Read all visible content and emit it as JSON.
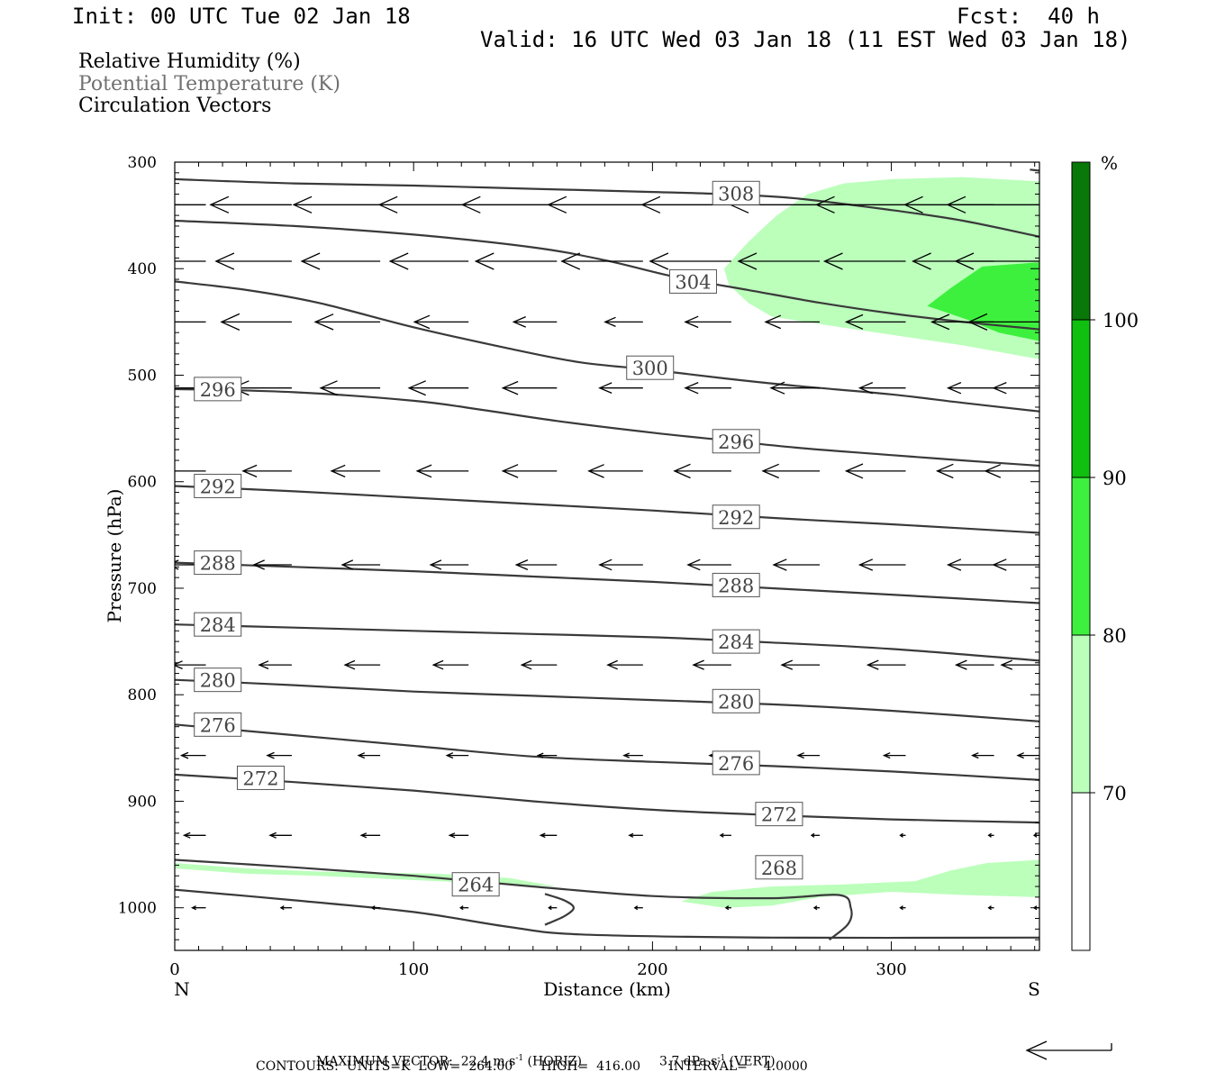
{
  "header": {
    "init": "Init: 00 UTC Tue 02 Jan 18",
    "fcst": "Fcst:  40 h",
    "valid": "Valid: 16 UTC Wed 03 Jan 18 (11 EST Wed 03 Jan 18)"
  },
  "legend": {
    "rh": "Relative Humidity (%)",
    "theta": "Potential Temperature (K)",
    "vectors": "Circulation Vectors"
  },
  "colors": {
    "rh70": "#bbffbb",
    "rh80": "#3ef03e",
    "rh90": "#0fc00f",
    "rh100": "#087808",
    "contour": "#3a3a3a",
    "label_text": "#444444",
    "legend_gray": "#707070"
  },
  "chart_data": {
    "type": "cross-section",
    "xlabel": "Distance (km)",
    "ylabel": "Pressure (hPa)",
    "xlim": [
      0,
      362
    ],
    "ylim": [
      1040,
      300
    ],
    "x_ticks": [
      "0",
      "100",
      "200",
      "300"
    ],
    "y_ticks": [
      "300",
      "400",
      "500",
      "600",
      "700",
      "800",
      "900",
      "1000"
    ],
    "x_end_labels": {
      "left": "N",
      "right": "S"
    },
    "colorbar": {
      "unit": "%",
      "levels": [
        "70",
        "80",
        "90",
        "100"
      ],
      "colors": [
        "#ffffff",
        "#bbffbb",
        "#3ef03e",
        "#0fc00f",
        "#087808"
      ]
    },
    "rh_fills": [
      {
        "level": 70,
        "points": [
          [
            230,
            400
          ],
          [
            240,
            375
          ],
          [
            252,
            350
          ],
          [
            265,
            330
          ],
          [
            280,
            320
          ],
          [
            300,
            316
          ],
          [
            330,
            314
          ],
          [
            362,
            318
          ],
          [
            362,
            485
          ],
          [
            330,
            472
          ],
          [
            300,
            462
          ],
          [
            270,
            452
          ],
          [
            250,
            445
          ],
          [
            240,
            432
          ],
          [
            232,
            415
          ]
        ]
      },
      {
        "level": 80,
        "points": [
          [
            315,
            435
          ],
          [
            325,
            418
          ],
          [
            338,
            398
          ],
          [
            362,
            394
          ],
          [
            362,
            468
          ],
          [
            345,
            460
          ],
          [
            332,
            448
          ]
        ]
      },
      {
        "level": 70,
        "points": [
          [
            0,
            958
          ],
          [
            30,
            963
          ],
          [
            60,
            966
          ],
          [
            110,
            968
          ],
          [
            140,
            972
          ],
          [
            160,
            980
          ],
          [
            140,
            978
          ],
          [
            110,
            975
          ],
          [
            60,
            970
          ],
          [
            30,
            968
          ],
          [
            0,
            963
          ]
        ]
      },
      {
        "level": 70,
        "points": [
          [
            212,
            994
          ],
          [
            225,
            985
          ],
          [
            250,
            980
          ],
          [
            280,
            978
          ],
          [
            310,
            975
          ],
          [
            325,
            965
          ],
          [
            340,
            958
          ],
          [
            362,
            955
          ],
          [
            362,
            990
          ],
          [
            330,
            988
          ],
          [
            300,
            985
          ],
          [
            270,
            990
          ],
          [
            250,
            998
          ],
          [
            230,
            1000
          ]
        ]
      }
    ],
    "theta_contours": [
      {
        "value": 308,
        "points": [
          [
            0,
            316
          ],
          [
            50,
            320
          ],
          [
            100,
            322
          ],
          [
            150,
            325
          ],
          [
            200,
            328
          ],
          [
            230,
            330
          ],
          [
            260,
            334
          ],
          [
            300,
            345
          ],
          [
            330,
            355
          ],
          [
            362,
            370
          ]
        ],
        "labels": [
          [
            235,
            329
          ]
        ]
      },
      {
        "value": 304,
        "points": [
          [
            0,
            355
          ],
          [
            50,
            360
          ],
          [
            100,
            368
          ],
          [
            150,
            380
          ],
          [
            180,
            392
          ],
          [
            210,
            408
          ],
          [
            240,
            420
          ],
          [
            270,
            432
          ],
          [
            300,
            442
          ],
          [
            330,
            450
          ],
          [
            362,
            457
          ]
        ],
        "labels": [
          [
            217,
            412
          ]
        ]
      },
      {
        "value": 300,
        "points": [
          [
            0,
            412
          ],
          [
            30,
            420
          ],
          [
            60,
            432
          ],
          [
            100,
            455
          ],
          [
            140,
            475
          ],
          [
            170,
            488
          ],
          [
            200,
            495
          ],
          [
            230,
            503
          ],
          [
            260,
            510
          ],
          [
            300,
            518
          ],
          [
            330,
            526
          ],
          [
            362,
            534
          ]
        ],
        "labels": [
          [
            199,
            493
          ]
        ]
      },
      {
        "value": 296,
        "points": [
          [
            0,
            513
          ],
          [
            50,
            516
          ],
          [
            100,
            524
          ],
          [
            130,
            533
          ],
          [
            160,
            543
          ],
          [
            200,
            554
          ],
          [
            230,
            561
          ],
          [
            260,
            568
          ],
          [
            300,
            575
          ],
          [
            330,
            580
          ],
          [
            362,
            585
          ]
        ],
        "labels": [
          [
            18,
            513
          ],
          [
            235,
            562
          ]
        ]
      },
      {
        "value": 292,
        "points": [
          [
            0,
            604
          ],
          [
            50,
            609
          ],
          [
            100,
            615
          ],
          [
            150,
            621
          ],
          [
            200,
            627
          ],
          [
            250,
            634
          ],
          [
            300,
            640
          ],
          [
            362,
            648
          ]
        ],
        "labels": [
          [
            18,
            604
          ],
          [
            235,
            633
          ]
        ]
      },
      {
        "value": 288,
        "points": [
          [
            0,
            676
          ],
          [
            50,
            680
          ],
          [
            100,
            684
          ],
          [
            150,
            689
          ],
          [
            200,
            694
          ],
          [
            250,
            700
          ],
          [
            300,
            706
          ],
          [
            362,
            714
          ]
        ],
        "labels": [
          [
            18,
            676
          ],
          [
            235,
            697
          ]
        ]
      },
      {
        "value": 284,
        "points": [
          [
            0,
            734
          ],
          [
            50,
            737
          ],
          [
            100,
            740
          ],
          [
            150,
            743
          ],
          [
            200,
            746
          ],
          [
            250,
            751
          ],
          [
            300,
            757
          ],
          [
            362,
            768
          ]
        ],
        "labels": [
          [
            18,
            734
          ],
          [
            235,
            750
          ]
        ]
      },
      {
        "value": 280,
        "points": [
          [
            0,
            786
          ],
          [
            50,
            791
          ],
          [
            100,
            797
          ],
          [
            150,
            801
          ],
          [
            200,
            805
          ],
          [
            250,
            809
          ],
          [
            300,
            815
          ],
          [
            362,
            825
          ]
        ],
        "labels": [
          [
            18,
            786
          ],
          [
            235,
            806
          ]
        ]
      },
      {
        "value": 276,
        "points": [
          [
            0,
            828
          ],
          [
            50,
            838
          ],
          [
            100,
            848
          ],
          [
            150,
            858
          ],
          [
            200,
            863
          ],
          [
            250,
            867
          ],
          [
            300,
            872
          ],
          [
            362,
            880
          ]
        ],
        "labels": [
          [
            18,
            828
          ],
          [
            235,
            864
          ]
        ]
      },
      {
        "value": 272,
        "points": [
          [
            0,
            875
          ],
          [
            50,
            882
          ],
          [
            100,
            890
          ],
          [
            150,
            900
          ],
          [
            200,
            908
          ],
          [
            250,
            913
          ],
          [
            300,
            917
          ],
          [
            362,
            920
          ]
        ],
        "labels": [
          [
            36,
            878
          ],
          [
            253,
            912
          ]
        ]
      },
      {
        "value": 268,
        "points": [
          [
            0,
            955
          ],
          [
            50,
            962
          ],
          [
            100,
            970
          ],
          [
            150,
            980
          ],
          [
            200,
            989
          ],
          [
            250,
            991
          ],
          [
            278,
            988
          ],
          [
            283,
            1000
          ],
          [
            282,
            1015
          ],
          [
            274,
            1030
          ]
        ],
        "labels": [
          [
            253,
            962
          ]
        ]
      },
      {
        "value": 264,
        "points": [
          [
            0,
            983
          ],
          [
            50,
            993
          ],
          [
            100,
            1004
          ],
          [
            140,
            1018
          ],
          [
            170,
            1025
          ],
          [
            250,
            1028
          ],
          [
            362,
            1028
          ]
        ],
        "labels": [
          [
            126,
            978
          ]
        ]
      }
    ],
    "theta_tail": [
      [
        358,
        307
      ],
      [
        362,
        308
      ]
    ],
    "theta_264_fold": [
      [
        155,
        987
      ],
      [
        163,
        993
      ],
      [
        167,
        1000
      ],
      [
        163,
        1008
      ],
      [
        155,
        1016
      ]
    ],
    "vectors": [
      {
        "p": 340,
        "u": [
          -30,
          -30,
          -32,
          -33,
          -35,
          -35,
          -33,
          -33,
          -33,
          -33,
          -34
        ]
      },
      {
        "p": 393,
        "u": [
          -28,
          -28,
          -29,
          -29,
          -30,
          -30,
          -30,
          -30,
          -30,
          -30,
          -31
        ]
      },
      {
        "p": 450,
        "u": [
          -29,
          -26,
          -24,
          -20,
          -16,
          -14,
          -17,
          -20,
          -22,
          -23,
          -26
        ]
      },
      {
        "p": 512,
        "u": [
          -22,
          -22,
          -22,
          -22,
          -20,
          -16,
          -17,
          -18,
          -17,
          -17,
          -17
        ]
      },
      {
        "p": 590,
        "u": [
          -18,
          -18,
          -18,
          -19,
          -20,
          -20,
          -21,
          -21,
          -22,
          -21,
          -20
        ]
      },
      {
        "p": 678,
        "u": [
          -14,
          -14,
          -14,
          -14,
          -15,
          -16,
          -16,
          -17,
          -17,
          -17,
          -17
        ]
      },
      {
        "p": 772,
        "u": [
          -12,
          -12,
          -13,
          -13,
          -13,
          -13,
          -14,
          -14,
          -14,
          -14,
          -14
        ]
      },
      {
        "p": 857,
        "u": [
          -9,
          -9,
          -8,
          -8,
          -7,
          -7,
          -8,
          -8,
          -8,
          -8,
          -8
        ]
      },
      {
        "p": 932,
        "u": [
          -8,
          -8,
          -7,
          -7,
          -6,
          -5,
          -4,
          -3,
          -2,
          -2,
          -2
        ]
      },
      {
        "p": 1000,
        "u": [
          -5,
          -4,
          -3,
          -3,
          -3,
          -3,
          -2,
          -2,
          -2,
          -2,
          -2
        ]
      }
    ],
    "vector_x": [
      13,
      49,
      86,
      123,
      160,
      196,
      233,
      270,
      306,
      343,
      362
    ]
  },
  "footer": {
    "max_vector_prefix": "MAXIMUM VECTOR:  22.4 m s",
    "exp": "-1",
    "horiz": " (HORIZ)",
    "vert_value": "3.7 dPa s",
    "vert": " (VERT)",
    "contours": "CONTOURS:  UNITS=K  LOW=  264.00       HIGH=  416.00       INTERVAL=    4.0000"
  }
}
